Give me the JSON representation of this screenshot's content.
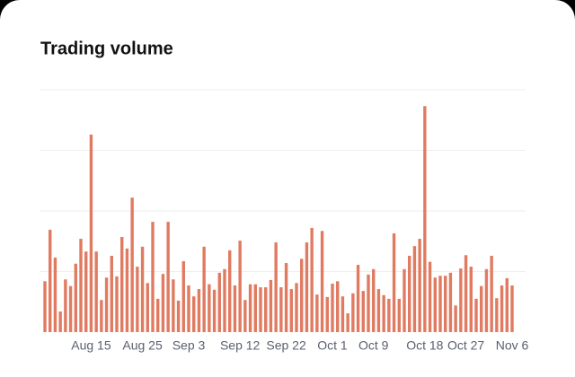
{
  "chart_data": {
    "type": "bar",
    "title": "Trading volume",
    "categories": [
      null,
      null,
      null,
      null,
      null,
      null,
      null,
      null,
      null,
      "Aug 15",
      null,
      null,
      null,
      null,
      null,
      null,
      null,
      null,
      null,
      "Aug 25",
      null,
      null,
      null,
      null,
      null,
      null,
      null,
      null,
      "Sep 3",
      null,
      null,
      null,
      null,
      null,
      null,
      null,
      null,
      null,
      "Sep 12",
      null,
      null,
      null,
      null,
      null,
      null,
      null,
      null,
      "Sep 22",
      null,
      null,
      null,
      null,
      null,
      null,
      null,
      null,
      "Oct 1",
      null,
      null,
      null,
      null,
      null,
      null,
      null,
      "Oct 9",
      null,
      null,
      null,
      null,
      null,
      null,
      null,
      null,
      null,
      "Oct 18",
      null,
      null,
      null,
      null,
      null,
      null,
      null,
      "Oct 27",
      null,
      null,
      null,
      null,
      null,
      null,
      null,
      null,
      "Nov 6"
    ],
    "values": [
      0.84,
      1.69,
      1.23,
      0.34,
      0.87,
      0.76,
      1.13,
      1.54,
      1.33,
      3.26,
      1.33,
      0.53,
      0.9,
      1.26,
      0.92,
      1.57,
      1.38,
      2.22,
      1.08,
      1.41,
      0.81,
      1.82,
      0.55,
      0.96,
      1.82,
      0.87,
      0.52,
      1.17,
      0.77,
      0.59,
      0.71,
      1.41,
      0.79,
      0.7,
      0.98,
      1.04,
      1.35,
      0.77,
      1.51,
      0.53,
      0.79,
      0.79,
      0.74,
      0.74,
      0.86,
      1.48,
      0.74,
      1.14,
      0.71,
      0.81,
      1.21,
      1.48,
      1.72,
      0.62,
      1.67,
      0.58,
      0.8,
      0.84,
      0.59,
      0.31,
      0.64,
      1.11,
      0.68,
      0.95,
      1.04,
      0.71,
      0.61,
      0.55,
      1.63,
      0.55,
      1.04,
      1.26,
      1.42,
      1.54,
      3.73,
      1.16,
      0.9,
      0.93,
      0.93,
      0.98,
      0.44,
      1.05,
      1.27,
      1.08,
      0.55,
      0.76,
      1.04,
      1.26,
      0.56,
      0.77,
      0.89,
      0.77
    ],
    "color": "#e07b62",
    "ylim": [
      0,
      4
    ],
    "yticks": [
      1,
      2,
      3,
      4
    ],
    "grid": true
  }
}
